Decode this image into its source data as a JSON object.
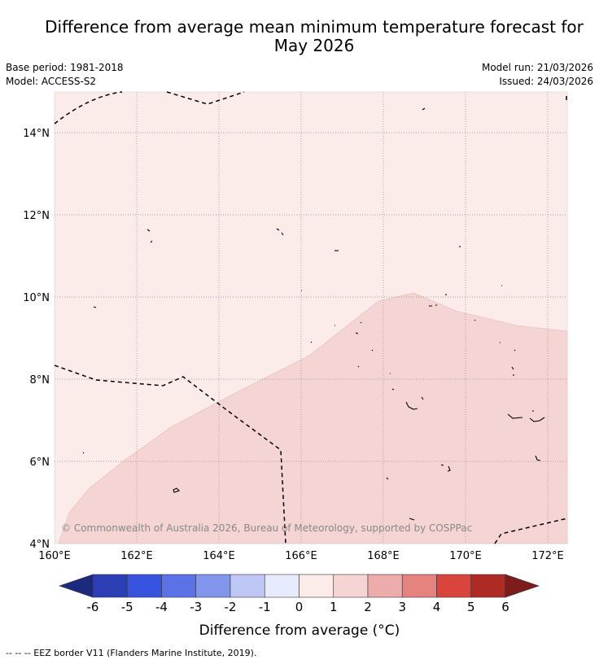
{
  "title_line1": "Difference from average mean minimum temperature forecast for",
  "title_line2": "May 2026",
  "base_period": "Base period: 1981-2018",
  "model": "Model: ACCESS-S2",
  "model_run": "Model run: 21/03/2026",
  "issued": "Issued: 24/03/2026",
  "copyright": "© Commonwealth of Australia 2026, Bureau of Meteorology, supported by COSPPac",
  "lat_labels": [
    "14°N",
    "12°N",
    "10°N",
    "8°N",
    "6°N",
    "4°N"
  ],
  "lon_labels": [
    "160°E",
    "162°E",
    "164°E",
    "166°E",
    "168°E",
    "170°E",
    "172°E"
  ],
  "colorbar": {
    "ticks": [
      "-6",
      "-5",
      "-4",
      "-3",
      "-2",
      "-1",
      "0",
      "1",
      "2",
      "3",
      "4",
      "5",
      "6"
    ],
    "colors": [
      "#1c2a7d",
      "#2b3eb4",
      "#3654e0",
      "#5a72e6",
      "#8396ee",
      "#bfc7f4",
      "#e8ebfb",
      "#fcece9",
      "#f5d5d3",
      "#ebacab",
      "#e5837e",
      "#d9453d",
      "#ad2a25",
      "#7c1d1b"
    ],
    "label": "Difference from average (°C)"
  },
  "map": {
    "background_class_color": "#fcece9",
    "anomaly_region_color": "#f5d5d3",
    "region_values": {
      "background": "0 to 1",
      "shaded": "1 to 2"
    }
  },
  "legend_note": "--  --  -- EEZ border V11 (Flanders Marine Institute, 2019)."
}
